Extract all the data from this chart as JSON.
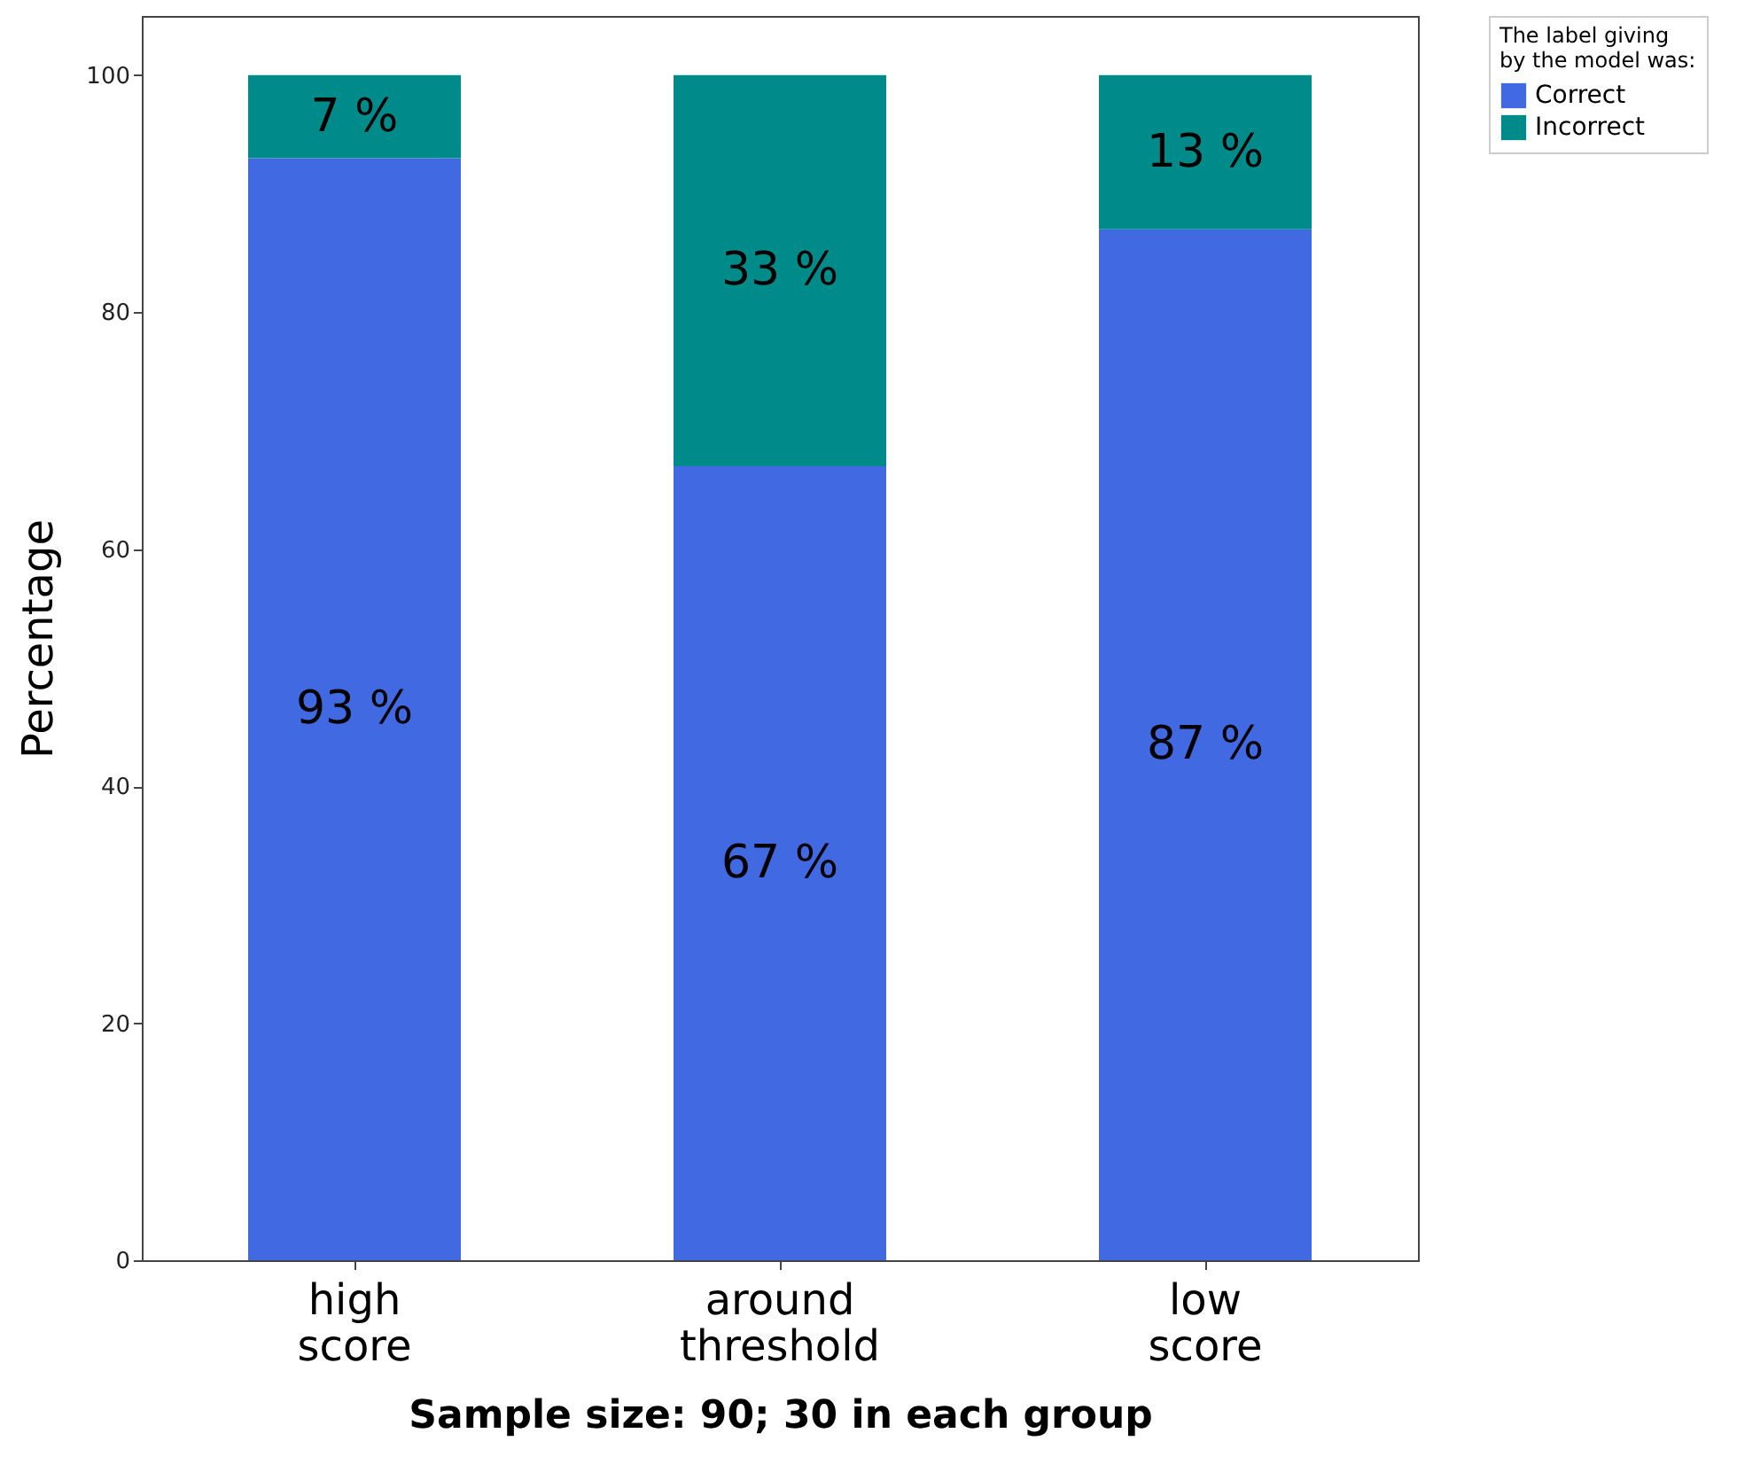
{
  "chart_data": {
    "type": "bar",
    "stacked": true,
    "xlabel": "Sample size: 90; 30 in each group",
    "ylabel": "Percentage",
    "legend_title": "The label giving\nby the model was:",
    "legend": "top right",
    "grid": false,
    "categories": [
      "high\nscore",
      "around\nthreshold",
      "low\nscore"
    ],
    "series": [
      {
        "name": "Correct",
        "color": "#4169e1",
        "values": [
          93,
          67,
          87
        ],
        "value_labels": [
          "93 %",
          "67 %",
          "87 %"
        ]
      },
      {
        "name": "Incorrect",
        "color": "#008b8b",
        "values": [
          7,
          33,
          13
        ],
        "value_labels": [
          "7 %",
          "33 %",
          "13 %"
        ]
      }
    ],
    "ylim": [
      0,
      105
    ],
    "yticks": [
      0,
      20,
      40,
      60,
      80,
      100
    ]
  }
}
